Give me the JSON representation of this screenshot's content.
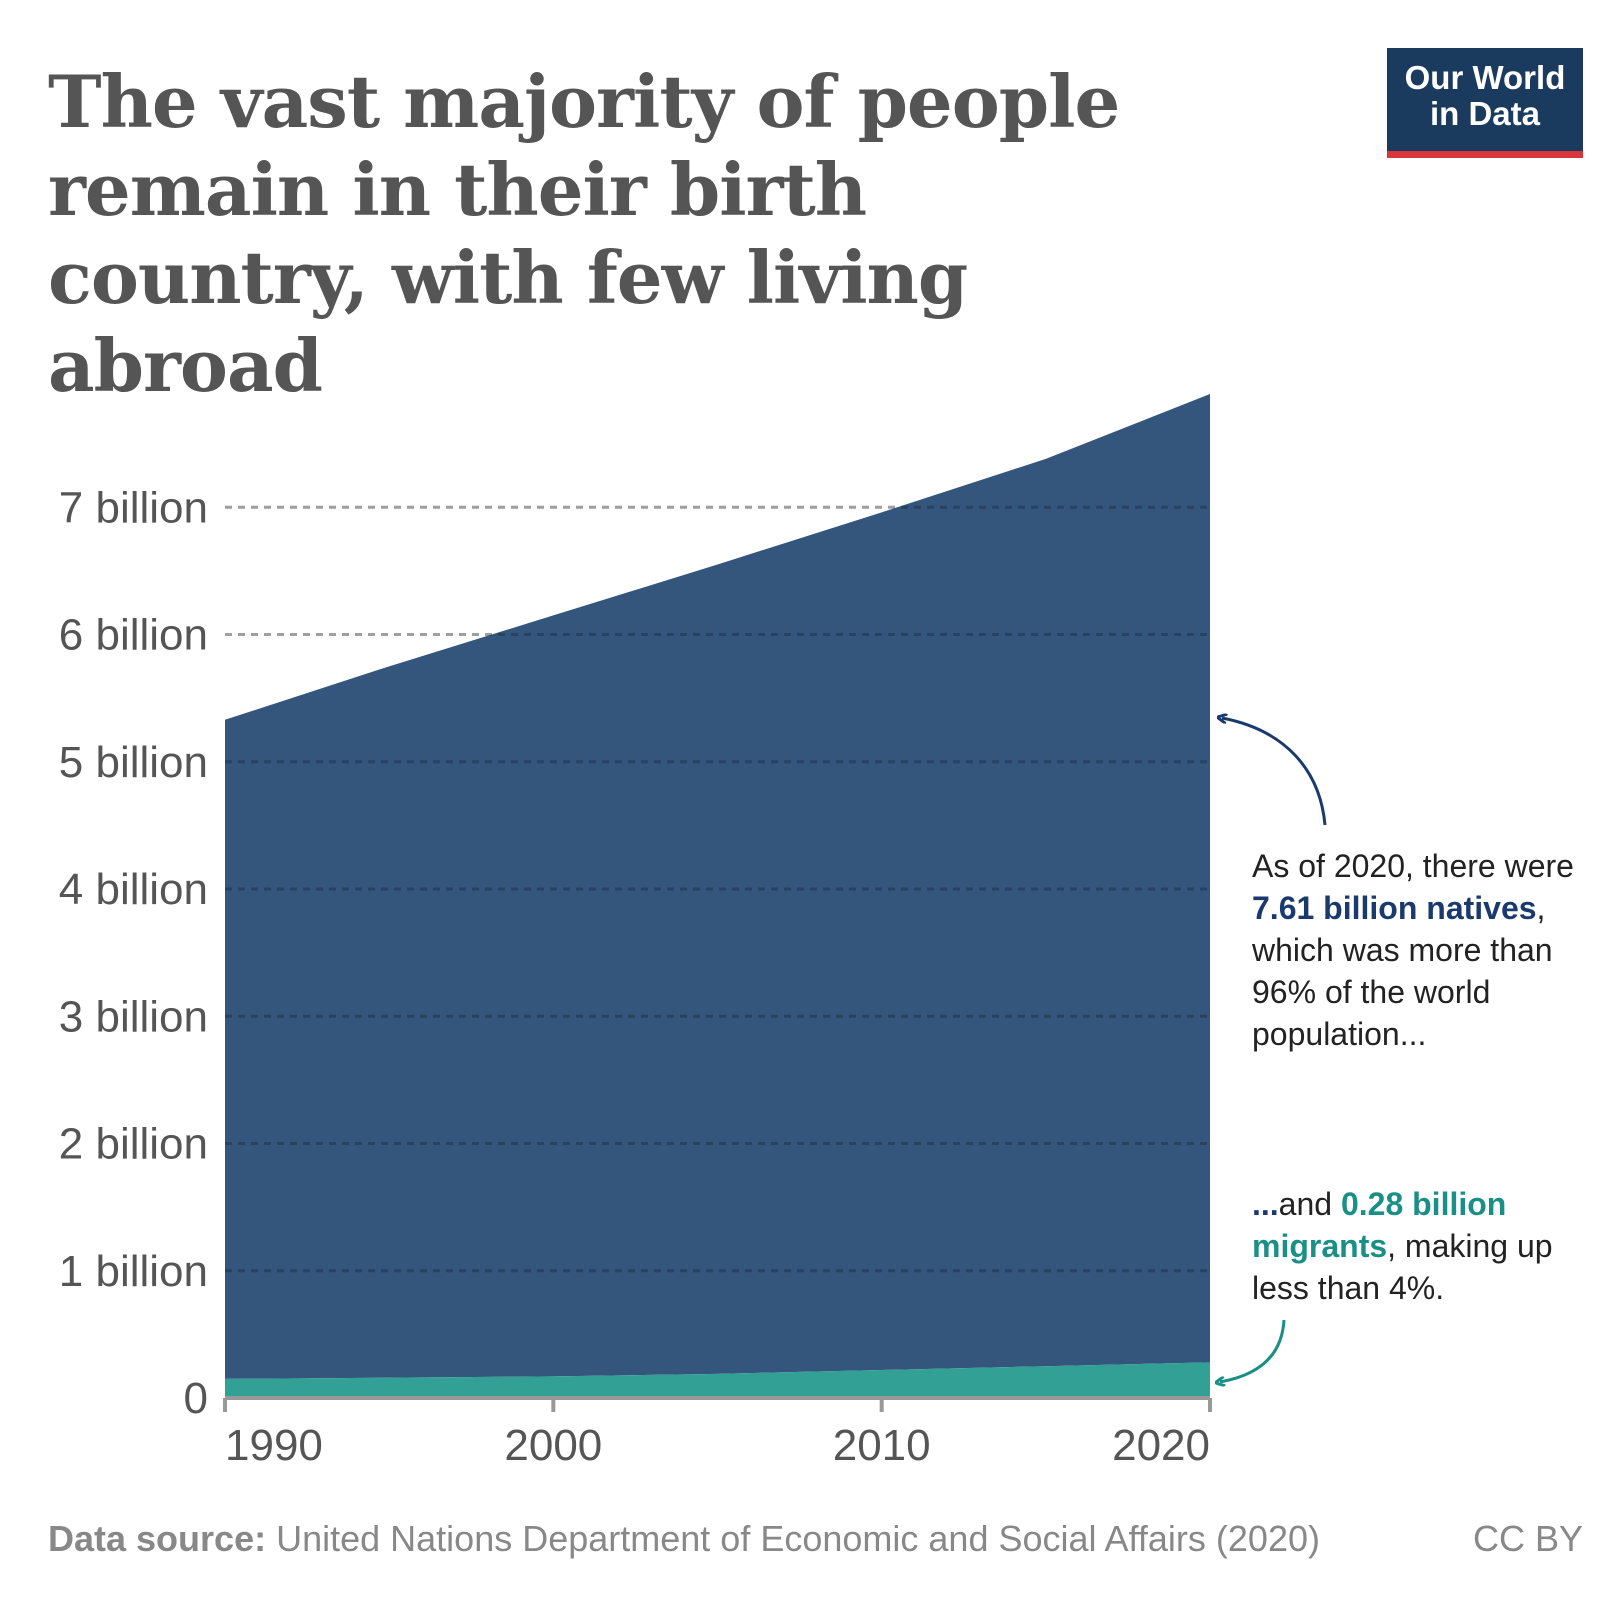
{
  "title": "The vast majority of people remain in their birth country, with few living abroad",
  "logo": {
    "line1": "Our World",
    "line2": "in Data"
  },
  "colors": {
    "natives": "#34557c",
    "migrants": "#33a096",
    "text": "#555555",
    "grid": "#cccccc"
  },
  "chart_data": {
    "type": "area",
    "stacked": true,
    "x": [
      1990,
      1995,
      2000,
      2005,
      2010,
      2015,
      2020
    ],
    "series": [
      {
        "name": "Migrants",
        "values": [
          0.15,
          0.16,
          0.17,
          0.19,
          0.22,
          0.25,
          0.28
        ]
      },
      {
        "name": "Natives",
        "values": [
          5.18,
          5.59,
          5.98,
          6.36,
          6.74,
          7.13,
          7.61
        ]
      }
    ],
    "ylim": [
      0,
      8
    ],
    "xlim": [
      1990,
      2020
    ],
    "yticks": [
      {
        "value": 0,
        "label": "0"
      },
      {
        "value": 1,
        "label": "1 billion"
      },
      {
        "value": 2,
        "label": "2 billion"
      },
      {
        "value": 3,
        "label": "3 billion"
      },
      {
        "value": 4,
        "label": "4 billion"
      },
      {
        "value": 5,
        "label": "5 billion"
      },
      {
        "value": 6,
        "label": "6 billion"
      },
      {
        "value": 7,
        "label": "7 billion"
      }
    ],
    "xticks": [
      {
        "value": 1990,
        "label": "1990"
      },
      {
        "value": 2000,
        "label": "2000"
      },
      {
        "value": 2010,
        "label": "2010"
      },
      {
        "value": 2020,
        "label": "2020"
      }
    ]
  },
  "annotations": {
    "natives": {
      "pre": "As of 2020, there were ",
      "highlight": "7.61 billion natives",
      "post": ", which was more than 96% of the world population..."
    },
    "migrants": {
      "pre": "...",
      "mid": "and ",
      "highlight": "0.28 billion migrants",
      "post": ", making up less than 4%."
    }
  },
  "footer": {
    "source_label": "Data source:",
    "source_text": "United Nations Department of Economic and Social Affairs (2020)",
    "license": "CC BY"
  }
}
